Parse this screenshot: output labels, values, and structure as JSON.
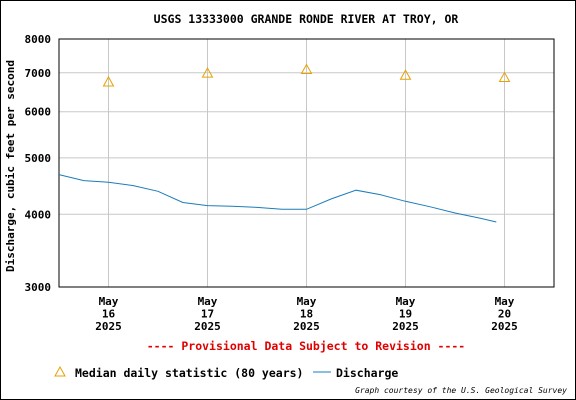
{
  "chart_data": {
    "type": "line",
    "scale": "log",
    "title": "USGS 13333000 GRANDE RONDE RIVER AT TROY, OR",
    "ylabel": "Discharge, cubic feet per second",
    "ylim": [
      3000,
      8000
    ],
    "y_ticks": [
      "8000",
      "7000",
      "6000",
      "5000",
      "4000",
      "3000"
    ],
    "x_ticks": [
      {
        "month": "May",
        "day": "16",
        "year": "2025"
      },
      {
        "month": "May",
        "day": "17",
        "year": "2025"
      },
      {
        "month": "May",
        "day": "18",
        "year": "2025"
      },
      {
        "month": "May",
        "day": "19",
        "year": "2025"
      },
      {
        "month": "May",
        "day": "20",
        "year": "2025"
      }
    ],
    "xlim": [
      "2025-05-15 12:00",
      "2025-05-20 12:00"
    ],
    "grid": true,
    "colors": {
      "discharge": "#1a7dbb",
      "median": "#e8a000",
      "provisional": "#e00000"
    },
    "series": [
      {
        "name": "Discharge",
        "x": [
          "2025-05-15 12:00",
          "2025-05-15 18:00",
          "2025-05-16 00:00",
          "2025-05-16 06:00",
          "2025-05-16 12:00",
          "2025-05-16 18:00",
          "2025-05-17 00:00",
          "2025-05-17 06:00",
          "2025-05-17 12:00",
          "2025-05-17 18:00",
          "2025-05-18 00:00",
          "2025-05-18 06:00",
          "2025-05-18 12:00",
          "2025-05-18 18:00",
          "2025-05-19 00:00",
          "2025-05-19 06:00",
          "2025-05-19 12:00",
          "2025-05-19 18:00",
          "2025-05-19 22:00"
        ],
        "values": [
          4680,
          4570,
          4540,
          4480,
          4380,
          4190,
          4140,
          4130,
          4110,
          4080,
          4080,
          4250,
          4400,
          4320,
          4210,
          4120,
          4020,
          3940,
          3880
        ]
      },
      {
        "name": "Median daily statistic (80 years)",
        "x": [
          "2025-05-16 00:00",
          "2025-05-17 00:00",
          "2025-05-18 00:00",
          "2025-05-19 00:00",
          "2025-05-20 00:00"
        ],
        "values": [
          6750,
          6990,
          7090,
          6930,
          6870
        ]
      }
    ],
    "provisional_note": "---- Provisional Data Subject to Revision ----",
    "legend": {
      "median": "Median daily statistic (80 years)",
      "discharge": "Discharge"
    },
    "credit": "Graph courtesy of the U.S. Geological Survey"
  }
}
